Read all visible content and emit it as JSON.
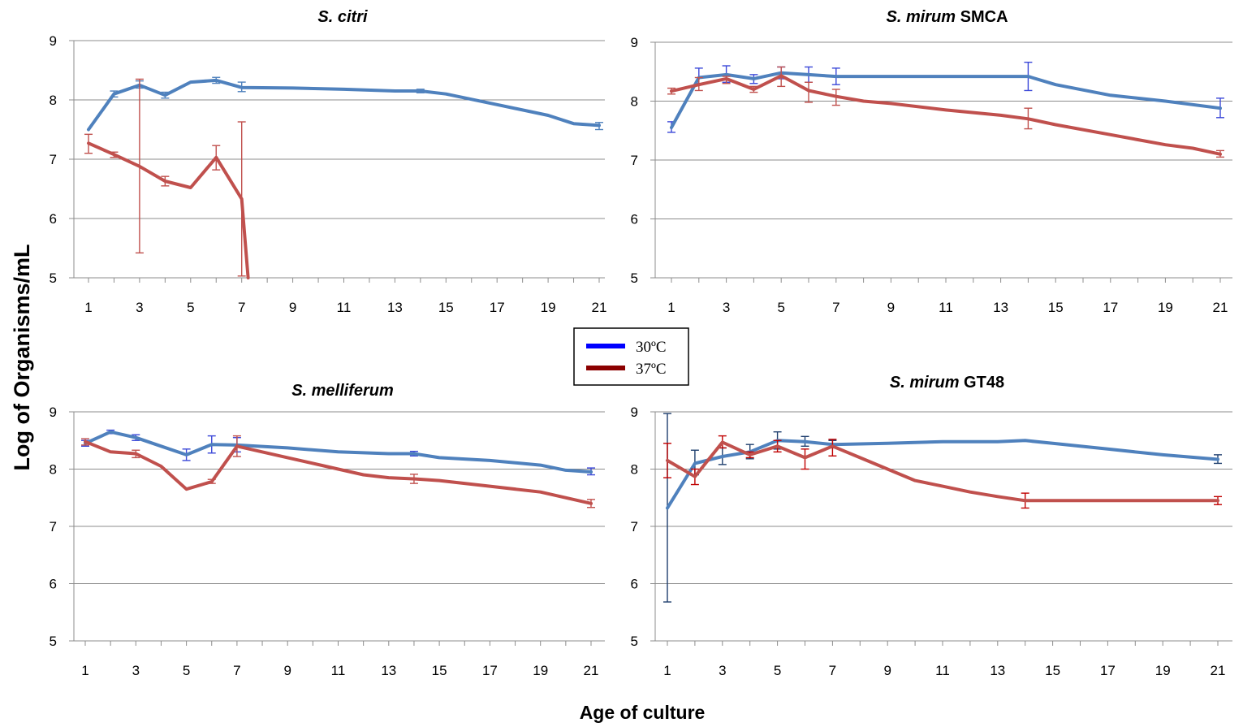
{
  "ylabel": "Log of Organisms/mL",
  "xlabel": "Age of culture",
  "legend": [
    {
      "label": "30ºC",
      "color": "#0000ff"
    },
    {
      "label": "37ºC",
      "color": "#8b0000"
    }
  ],
  "chart_data": [
    {
      "type": "line",
      "title": "S. citri",
      "title_parts": [
        {
          "text": "S. citri",
          "italic": true
        }
      ],
      "xticks": [
        1,
        3,
        5,
        7,
        9,
        11,
        13,
        15,
        17,
        19,
        21
      ],
      "yticks": [
        5,
        6,
        7,
        8,
        9
      ],
      "ylim": [
        5,
        9
      ],
      "series": [
        {
          "name": "30ºC",
          "color": "#4f81bd",
          "bar_color": "#4f81bd",
          "points": [
            [
              1,
              7.5
            ],
            [
              2,
              8.1
            ],
            [
              3,
              8.25
            ],
            [
              4,
              8.08
            ],
            [
              5,
              8.3
            ],
            [
              6,
              8.33
            ],
            [
              7,
              8.21
            ],
            [
              9,
              8.2
            ],
            [
              11,
              8.18
            ],
            [
              13,
              8.15
            ],
            [
              14,
              8.15
            ],
            [
              15,
              8.1
            ],
            [
              17,
              7.92
            ],
            [
              19,
              7.74
            ],
            [
              20,
              7.6
            ],
            [
              21,
              7.57
            ]
          ],
          "errors": [
            [
              2,
              8.1,
              8.05,
              8.15
            ],
            [
              3,
              8.25,
              8.2,
              8.32
            ],
            [
              4,
              8.08,
              8.03,
              8.13
            ],
            [
              6,
              8.33,
              8.28,
              8.38
            ],
            [
              7,
              8.21,
              8.14,
              8.3
            ],
            [
              14,
              8.15,
              8.12,
              8.18
            ],
            [
              21,
              7.57,
              7.5,
              7.62
            ]
          ]
        },
        {
          "name": "37ºC",
          "color": "#c0504d",
          "bar_color": "#c0504d",
          "points": [
            [
              1,
              7.27
            ],
            [
              2,
              7.08
            ],
            [
              3,
              6.88
            ],
            [
              4,
              6.63
            ],
            [
              5,
              6.52
            ],
            [
              6,
              7.03
            ],
            [
              7,
              6.33
            ],
            [
              7.25,
              5.0
            ]
          ],
          "errors": [
            [
              1,
              7.27,
              7.1,
              7.42
            ],
            [
              2,
              7.08,
              7.03,
              7.12
            ],
            [
              3,
              6.88,
              5.42,
              8.35
            ],
            [
              4,
              6.63,
              6.55,
              6.71
            ],
            [
              6,
              7.03,
              6.82,
              7.23
            ],
            [
              7,
              6.33,
              5.03,
              7.63
            ]
          ]
        }
      ]
    },
    {
      "type": "line",
      "title": "S. mirum SMCA",
      "title_parts": [
        {
          "text": "S. mirum",
          "italic": true
        },
        {
          "text": " SMCA",
          "italic": false
        }
      ],
      "xticks": [
        1,
        3,
        5,
        7,
        9,
        11,
        13,
        15,
        17,
        19,
        21
      ],
      "yticks": [
        5,
        6,
        7,
        8,
        9
      ],
      "ylim": [
        5,
        9
      ],
      "series": [
        {
          "name": "30ºC",
          "color": "#4f81bd",
          "bar_color": "#3b48d8",
          "points": [
            [
              1,
              7.55
            ],
            [
              2,
              8.4
            ],
            [
              3,
              8.45
            ],
            [
              4,
              8.38
            ],
            [
              5,
              8.48
            ],
            [
              6,
              8.45
            ],
            [
              7,
              8.42
            ],
            [
              9,
              8.42
            ],
            [
              11,
              8.42
            ],
            [
              13,
              8.42
            ],
            [
              14,
              8.42
            ],
            [
              15,
              8.28
            ],
            [
              17,
              8.1
            ],
            [
              19,
              8.0
            ],
            [
              21,
              7.88
            ]
          ],
          "errors": [
            [
              1,
              7.55,
              7.47,
              7.65
            ],
            [
              2,
              8.4,
              8.3,
              8.56
            ],
            [
              3,
              8.45,
              8.32,
              8.6
            ],
            [
              4,
              8.38,
              8.3,
              8.45
            ],
            [
              5,
              8.48,
              8.38,
              8.58
            ],
            [
              6,
              8.45,
              8.32,
              8.58
            ],
            [
              7,
              8.42,
              8.28,
              8.56
            ],
            [
              14,
              8.42,
              8.18,
              8.66
            ],
            [
              21,
              7.88,
              7.72,
              8.05
            ]
          ]
        },
        {
          "name": "37ºC",
          "color": "#c0504d",
          "bar_color": "#c0504d",
          "points": [
            [
              1,
              8.17
            ],
            [
              2,
              8.28
            ],
            [
              3,
              8.38
            ],
            [
              4,
              8.2
            ],
            [
              5,
              8.43
            ],
            [
              6,
              8.18
            ],
            [
              7,
              8.08
            ],
            [
              8,
              8.0
            ],
            [
              9,
              7.96
            ],
            [
              11,
              7.85
            ],
            [
              13,
              7.76
            ],
            [
              14,
              7.7
            ],
            [
              15,
              7.6
            ],
            [
              17,
              7.43
            ],
            [
              19,
              7.26
            ],
            [
              20,
              7.2
            ],
            [
              21,
              7.1
            ]
          ],
          "errors": [
            [
              1,
              8.17,
              8.12,
              8.22
            ],
            [
              2,
              8.28,
              8.18,
              8.4
            ],
            [
              3,
              8.38,
              8.3,
              8.42
            ],
            [
              4,
              8.2,
              8.15,
              8.25
            ],
            [
              5,
              8.43,
              8.25,
              8.58
            ],
            [
              6,
              8.18,
              7.98,
              8.32
            ],
            [
              7,
              8.08,
              7.93,
              8.2
            ],
            [
              14,
              7.7,
              7.53,
              7.88
            ],
            [
              21,
              7.1,
              7.05,
              7.16
            ]
          ]
        }
      ]
    },
    {
      "type": "line",
      "title": "S. melliferum",
      "title_parts": [
        {
          "text": "S. melliferum",
          "italic": true
        }
      ],
      "xticks": [
        1,
        3,
        5,
        7,
        9,
        11,
        13,
        15,
        17,
        19,
        21
      ],
      "yticks": [
        5,
        6,
        7,
        8,
        9
      ],
      "ylim": [
        5,
        9
      ],
      "series": [
        {
          "name": "30ºC",
          "color": "#4f81bd",
          "bar_color": "#3b48d8",
          "points": [
            [
              1,
              8.45
            ],
            [
              2,
              8.65
            ],
            [
              3,
              8.55
            ],
            [
              4,
              8.4
            ],
            [
              5,
              8.25
            ],
            [
              6,
              8.43
            ],
            [
              7,
              8.42
            ],
            [
              9,
              8.37
            ],
            [
              11,
              8.3
            ],
            [
              13,
              8.27
            ],
            [
              14,
              8.27
            ],
            [
              15,
              8.2
            ],
            [
              17,
              8.15
            ],
            [
              19,
              8.07
            ],
            [
              20,
              7.98
            ],
            [
              21,
              7.95
            ]
          ],
          "errors": [
            [
              1,
              8.45,
              8.4,
              8.5
            ],
            [
              2,
              8.65,
              8.62,
              8.68
            ],
            [
              3,
              8.55,
              8.5,
              8.6
            ],
            [
              5,
              8.25,
              8.15,
              8.35
            ],
            [
              6,
              8.43,
              8.28,
              8.58
            ],
            [
              7,
              8.42,
              8.3,
              8.55
            ],
            [
              14,
              8.27,
              8.23,
              8.31
            ],
            [
              21,
              7.95,
              7.9,
              8.02
            ]
          ]
        },
        {
          "name": "37ºC",
          "color": "#c0504d",
          "bar_color": "#c0504d",
          "points": [
            [
              1,
              8.48
            ],
            [
              2,
              8.3
            ],
            [
              3,
              8.27
            ],
            [
              4,
              8.05
            ],
            [
              5,
              7.65
            ],
            [
              6,
              7.78
            ],
            [
              7,
              8.4
            ],
            [
              9,
              8.2
            ],
            [
              11,
              8.0
            ],
            [
              12,
              7.9
            ],
            [
              13,
              7.85
            ],
            [
              14,
              7.83
            ],
            [
              15,
              7.8
            ],
            [
              17,
              7.7
            ],
            [
              19,
              7.6
            ],
            [
              21,
              7.4
            ]
          ],
          "errors": [
            [
              1,
              8.48,
              8.42,
              8.53
            ],
            [
              3,
              8.27,
              8.2,
              8.33
            ],
            [
              6,
              7.78,
              7.75,
              7.82
            ],
            [
              7,
              8.4,
              8.22,
              8.58
            ],
            [
              14,
              7.83,
              7.75,
              7.91
            ],
            [
              21,
              7.4,
              7.33,
              7.47
            ]
          ]
        }
      ]
    },
    {
      "type": "line",
      "title": "S. mirum GT48",
      "title_parts": [
        {
          "text": "S. mirum",
          "italic": true
        },
        {
          "text": " GT48",
          "italic": false
        }
      ],
      "xticks": [
        1,
        3,
        5,
        7,
        9,
        11,
        13,
        15,
        17,
        19,
        21
      ],
      "yticks": [
        5,
        6,
        7,
        8,
        9
      ],
      "ylim": [
        5,
        9
      ],
      "series": [
        {
          "name": "30ºC",
          "color": "#4f81bd",
          "bar_color": "#1f3f6e",
          "points": [
            [
              1,
              7.32
            ],
            [
              2,
              8.1
            ],
            [
              3,
              8.22
            ],
            [
              4,
              8.3
            ],
            [
              5,
              8.5
            ],
            [
              6,
              8.48
            ],
            [
              7,
              8.43
            ],
            [
              9,
              8.45
            ],
            [
              11,
              8.48
            ],
            [
              13,
              8.48
            ],
            [
              14,
              8.5
            ],
            [
              15,
              8.45
            ],
            [
              17,
              8.35
            ],
            [
              19,
              8.25
            ],
            [
              21,
              8.17
            ]
          ],
          "errors": [
            [
              1,
              7.32,
              5.68,
              8.97
            ],
            [
              2,
              8.1,
              7.9,
              8.33
            ],
            [
              3,
              8.22,
              8.08,
              8.37
            ],
            [
              4,
              8.3,
              8.18,
              8.43
            ],
            [
              5,
              8.5,
              8.35,
              8.65
            ],
            [
              6,
              8.48,
              8.4,
              8.57
            ],
            [
              7,
              8.43,
              8.37,
              8.5
            ],
            [
              21,
              8.17,
              8.1,
              8.25
            ]
          ]
        },
        {
          "name": "37ºC",
          "color": "#c0504d",
          "bar_color": "#c00000",
          "points": [
            [
              1,
              8.15
            ],
            [
              2,
              7.87
            ],
            [
              3,
              8.47
            ],
            [
              4,
              8.25
            ],
            [
              5,
              8.4
            ],
            [
              6,
              8.2
            ],
            [
              7,
              8.4
            ],
            [
              8,
              8.2
            ],
            [
              9,
              8.0
            ],
            [
              10,
              7.8
            ],
            [
              11,
              7.7
            ],
            [
              12,
              7.6
            ],
            [
              13,
              7.52
            ],
            [
              14,
              7.45
            ],
            [
              15,
              7.45
            ],
            [
              17,
              7.45
            ],
            [
              19,
              7.45
            ],
            [
              21,
              7.45
            ]
          ],
          "errors": [
            [
              1,
              8.15,
              7.85,
              8.45
            ],
            [
              2,
              7.87,
              7.73,
              8.0
            ],
            [
              3,
              8.47,
              8.37,
              8.58
            ],
            [
              4,
              8.25,
              8.2,
              8.3
            ],
            [
              5,
              8.4,
              8.3,
              8.5
            ],
            [
              6,
              8.2,
              8.0,
              8.35
            ],
            [
              7,
              8.4,
              8.23,
              8.52
            ],
            [
              14,
              7.45,
              7.32,
              7.58
            ],
            [
              21,
              7.45,
              7.38,
              7.52
            ]
          ]
        }
      ]
    }
  ]
}
